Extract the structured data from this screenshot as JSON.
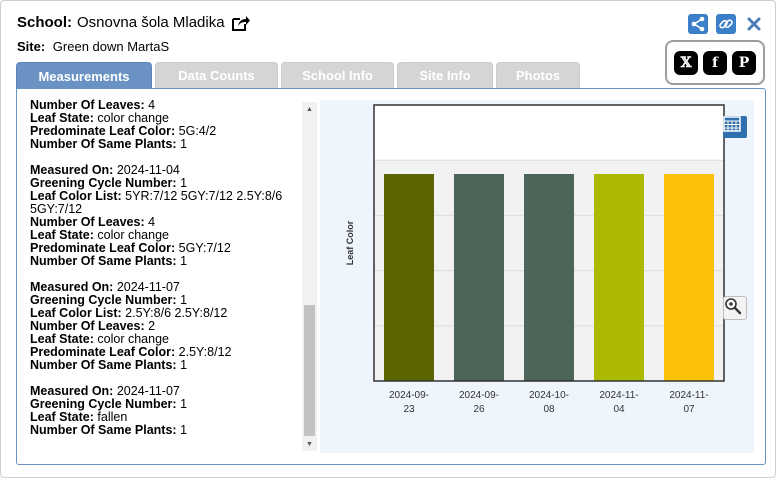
{
  "header": {
    "school_label": "School:",
    "school_name": "Osnovna šola Mladika",
    "site_label": "Site:",
    "site_name": "Green down MartaS"
  },
  "tabs": [
    {
      "label": "Measurements",
      "active": true
    },
    {
      "label": "Data Counts",
      "active": false
    },
    {
      "label": "School Info",
      "active": false
    },
    {
      "label": "Site Info",
      "active": false
    },
    {
      "label": "Photos",
      "active": false
    }
  ],
  "icons": {
    "share": "share-icon",
    "link": "link-icon",
    "close": "close-icon",
    "external": "external-link-icon",
    "x": "x-social-icon",
    "facebook": "facebook-icon",
    "pinterest": "pinterest-icon",
    "table": "table-icon",
    "zoom": "zoom-in-icon"
  },
  "social": {
    "x": "𝕏",
    "facebook": "f",
    "pinterest": "P"
  },
  "measurements": [
    [
      {
        "k": "Number Of Leaves:",
        "v": "4"
      },
      {
        "k": "Leaf State:",
        "v": "color change"
      },
      {
        "k": "Predominate Leaf Color:",
        "v": "5G:4/2"
      },
      {
        "k": "Number Of Same Plants:",
        "v": "1"
      }
    ],
    [
      {
        "k": "Measured On:",
        "v": "2024-11-04"
      },
      {
        "k": "Greening Cycle Number:",
        "v": "1"
      },
      {
        "k": "Leaf Color List:",
        "v": "5YR:7/12 5GY:7/12 2.5Y:8/6 5GY:7/12"
      },
      {
        "k": "Number Of Leaves:",
        "v": "4"
      },
      {
        "k": "Leaf State:",
        "v": "color change"
      },
      {
        "k": "Predominate Leaf Color:",
        "v": "5GY:7/12"
      },
      {
        "k": "Number Of Same Plants:",
        "v": "1"
      }
    ],
    [
      {
        "k": "Measured On:",
        "v": "2024-11-07"
      },
      {
        "k": "Greening Cycle Number:",
        "v": "1"
      },
      {
        "k": "Leaf Color List:",
        "v": "2.5Y:8/6 2.5Y:8/12"
      },
      {
        "k": "Number Of Leaves:",
        "v": "2"
      },
      {
        "k": "Leaf State:",
        "v": "color change"
      },
      {
        "k": "Predominate Leaf Color:",
        "v": "2.5Y:8/12"
      },
      {
        "k": "Number Of Same Plants:",
        "v": "1"
      }
    ],
    [
      {
        "k": "Measured On:",
        "v": "2024-11-07"
      },
      {
        "k": "Greening Cycle Number:",
        "v": "1"
      },
      {
        "k": "Leaf State:",
        "v": "fallen"
      },
      {
        "k": "Number Of Same Plants:",
        "v": "1"
      }
    ]
  ],
  "chart_data": {
    "type": "bar",
    "ylabel": "Leaf Color",
    "xlabel": "",
    "title": "",
    "categories": [
      [
        "2024-09-",
        "23"
      ],
      [
        "2024-09-",
        "26"
      ],
      [
        "2024-10-",
        "08"
      ],
      [
        "2024-11-",
        "04"
      ],
      [
        "2024-11-",
        "07"
      ]
    ],
    "values": [
      0.75,
      0.75,
      0.75,
      0.75,
      0.75
    ],
    "colors": [
      "#5c6400",
      "#4d6459",
      "#4d6459",
      "#abb900",
      "#fbc10a"
    ],
    "ylim": [
      0,
      1
    ],
    "grid": true,
    "band_color": "#f2f2f2"
  }
}
